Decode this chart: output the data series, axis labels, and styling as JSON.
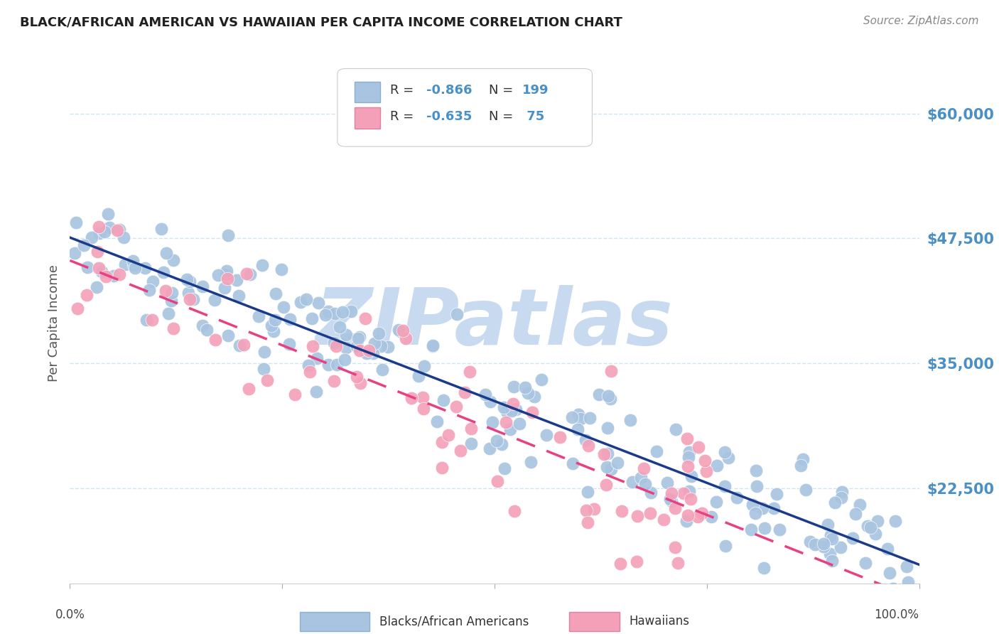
{
  "title": "BLACK/AFRICAN AMERICAN VS HAWAIIAN PER CAPITA INCOME CORRELATION CHART",
  "source": "Source: ZipAtlas.com",
  "ylabel": "Per Capita Income",
  "ytick_labels": [
    "$22,500",
    "$35,000",
    "$47,500",
    "$60,000"
  ],
  "ytick_values": [
    22500,
    35000,
    47500,
    60000
  ],
  "ymin": 13000,
  "ymax": 65000,
  "xmin": 0.0,
  "xmax": 1.0,
  "blue_R": -0.866,
  "blue_N": 199,
  "pink_R": -0.635,
  "pink_N": 75,
  "blue_color": "#a8c4e0",
  "blue_line_color": "#1a3a8a",
  "pink_color": "#f4a0b8",
  "pink_line_color": "#e84080",
  "watermark_color": "#c8daf0",
  "background_color": "#ffffff",
  "grid_color": "#d0e4f0",
  "title_color": "#202020",
  "axis_label_color": "#4a90c8",
  "source_color": "#888888"
}
